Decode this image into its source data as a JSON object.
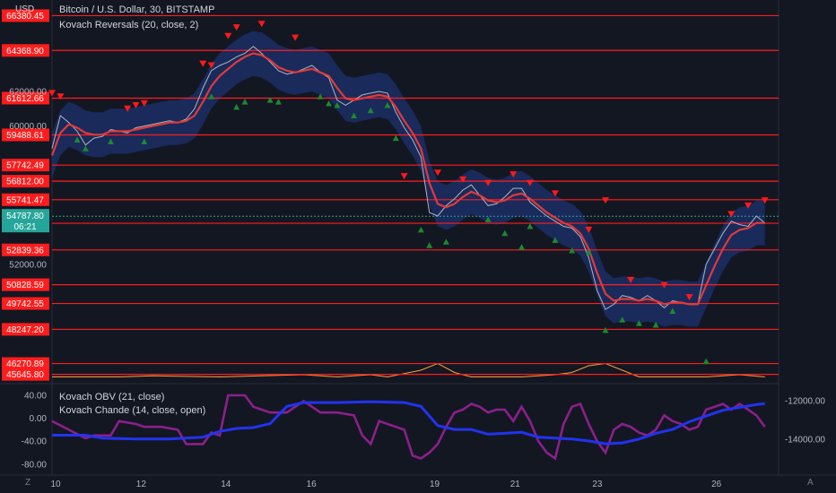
{
  "header": {
    "currency": "USD",
    "symbol_line": "Bitcoin / U.S. Dollar, 30, BITSTAMP",
    "indicator_line": "Kovach Reversals (20, close, 2)"
  },
  "lower_pane": {
    "line1": "Kovach OBV (21, close)",
    "line2": "Kovach Chande (14, close, open)"
  },
  "footer": {
    "left_icon": "Z",
    "right_icon": "A"
  },
  "colors": {
    "background": "#131722",
    "level_line": "#ff1c1c",
    "price_line": "#b2b5be",
    "ma_line": "#e03a3a",
    "band": "#1f3a8a",
    "obv_line": "#2233ee",
    "chande_line": "#8c1f8c",
    "volume_line": "#ff9f40",
    "up_marker": "#1b8a2e",
    "down_marker": "#ff1a1a",
    "current_price": "#26a69a"
  },
  "chart_data": {
    "type": "line",
    "x_tick_labels": [
      "10",
      "12",
      "14",
      "16",
      "19",
      "21",
      "23",
      "26"
    ],
    "price_axis_ticks": [
      "62000.00",
      "60000.00",
      "52000.00"
    ],
    "level_lines": [
      "66380.45",
      "64368.90",
      "61612.66",
      "59488.61",
      "57742.49",
      "56812.00",
      "55741.47",
      "54381.19",
      "52839.36",
      "50828.59",
      "49742.55",
      "48247.20",
      "46270.89",
      "45645.80"
    ],
    "current_price": {
      "value": "54787.80",
      "countdown": "06:21"
    },
    "close_series": [
      [
        0,
        58700
      ],
      [
        1,
        60600
      ],
      [
        2,
        60200
      ],
      [
        3,
        59700
      ],
      [
        4,
        58900
      ],
      [
        5,
        59300
      ],
      [
        6,
        59400
      ],
      [
        7,
        59800
      ],
      [
        8,
        59700
      ],
      [
        9,
        59600
      ],
      [
        10,
        59900
      ],
      [
        11,
        60000
      ],
      [
        12,
        60100
      ],
      [
        13,
        60200
      ],
      [
        14,
        60300
      ],
      [
        15,
        60200
      ],
      [
        16,
        60400
      ],
      [
        17,
        61000
      ],
      [
        18,
        62200
      ],
      [
        19,
        63200
      ],
      [
        20,
        63500
      ],
      [
        21,
        63700
      ],
      [
        22,
        64000
      ],
      [
        23,
        64200
      ],
      [
        24,
        64600
      ],
      [
        25,
        64200
      ],
      [
        26,
        63700
      ],
      [
        27,
        63200
      ],
      [
        28,
        63000
      ],
      [
        29,
        63100
      ],
      [
        30,
        63300
      ],
      [
        31,
        63500
      ],
      [
        32,
        63100
      ],
      [
        33,
        62800
      ],
      [
        34,
        61500
      ],
      [
        35,
        61200
      ],
      [
        36,
        61500
      ],
      [
        37,
        61800
      ],
      [
        38,
        61900
      ],
      [
        39,
        62000
      ],
      [
        40,
        61900
      ],
      [
        41,
        60800
      ],
      [
        42,
        59900
      ],
      [
        43,
        59200
      ],
      [
        44,
        58200
      ],
      [
        45,
        55000
      ],
      [
        46,
        54800
      ],
      [
        47,
        55400
      ],
      [
        48,
        55800
      ],
      [
        49,
        56300
      ],
      [
        50,
        56600
      ],
      [
        51,
        56000
      ],
      [
        52,
        55400
      ],
      [
        53,
        55500
      ],
      [
        54,
        55900
      ],
      [
        55,
        56400
      ],
      [
        56,
        56400
      ],
      [
        57,
        55600
      ],
      [
        58,
        55200
      ],
      [
        59,
        54800
      ],
      [
        60,
        54500
      ],
      [
        61,
        54200
      ],
      [
        62,
        54100
      ],
      [
        63,
        53600
      ],
      [
        64,
        52400
      ],
      [
        65,
        50500
      ],
      [
        66,
        49400
      ],
      [
        67,
        49700
      ],
      [
        68,
        50200
      ],
      [
        69,
        50100
      ],
      [
        70,
        49900
      ],
      [
        71,
        50200
      ],
      [
        72,
        49900
      ],
      [
        73,
        49500
      ],
      [
        74,
        49900
      ],
      [
        75,
        49800
      ],
      [
        76,
        49700
      ],
      [
        77,
        49700
      ],
      [
        78,
        52000
      ],
      [
        79,
        52900
      ],
      [
        80,
        53800
      ],
      [
        81,
        54500
      ],
      [
        82,
        54300
      ],
      [
        83,
        54200
      ],
      [
        84,
        54800
      ],
      [
        85,
        54400
      ]
    ],
    "ma_series": [
      [
        0,
        58300
      ],
      [
        1,
        59600
      ],
      [
        2,
        60100
      ],
      [
        3,
        59900
      ],
      [
        4,
        59600
      ],
      [
        5,
        59500
      ],
      [
        6,
        59500
      ],
      [
        7,
        59700
      ],
      [
        8,
        59700
      ],
      [
        9,
        59700
      ],
      [
        10,
        59800
      ],
      [
        11,
        59900
      ],
      [
        12,
        60000
      ],
      [
        13,
        60100
      ],
      [
        14,
        60200
      ],
      [
        15,
        60200
      ],
      [
        16,
        60300
      ],
      [
        17,
        60600
      ],
      [
        18,
        61400
      ],
      [
        19,
        62300
      ],
      [
        20,
        62900
      ],
      [
        21,
        63300
      ],
      [
        22,
        63700
      ],
      [
        23,
        64000
      ],
      [
        24,
        64200
      ],
      [
        25,
        64100
      ],
      [
        26,
        63800
      ],
      [
        27,
        63400
      ],
      [
        28,
        63200
      ],
      [
        29,
        63100
      ],
      [
        30,
        63200
      ],
      [
        31,
        63300
      ],
      [
        32,
        63100
      ],
      [
        33,
        62900
      ],
      [
        34,
        62200
      ],
      [
        35,
        61600
      ],
      [
        36,
        61500
      ],
      [
        37,
        61600
      ],
      [
        38,
        61700
      ],
      [
        39,
        61800
      ],
      [
        40,
        61700
      ],
      [
        41,
        61100
      ],
      [
        42,
        60300
      ],
      [
        43,
        59600
      ],
      [
        44,
        58700
      ],
      [
        45,
        56700
      ],
      [
        46,
        55500
      ],
      [
        47,
        55300
      ],
      [
        48,
        55500
      ],
      [
        49,
        55900
      ],
      [
        50,
        56200
      ],
      [
        51,
        56000
      ],
      [
        52,
        55700
      ],
      [
        53,
        55600
      ],
      [
        54,
        55700
      ],
      [
        55,
        56000
      ],
      [
        56,
        56100
      ],
      [
        57,
        55800
      ],
      [
        58,
        55400
      ],
      [
        59,
        55000
      ],
      [
        60,
        54700
      ],
      [
        61,
        54400
      ],
      [
        62,
        54200
      ],
      [
        63,
        53800
      ],
      [
        64,
        52900
      ],
      [
        65,
        51500
      ],
      [
        66,
        50300
      ],
      [
        67,
        49900
      ],
      [
        68,
        50000
      ],
      [
        69,
        50000
      ],
      [
        70,
        49900
      ],
      [
        71,
        50000
      ],
      [
        72,
        49900
      ],
      [
        73,
        49700
      ],
      [
        74,
        49800
      ],
      [
        75,
        49800
      ],
      [
        76,
        49700
      ],
      [
        77,
        49700
      ],
      [
        78,
        50800
      ],
      [
        79,
        51900
      ],
      [
        80,
        52900
      ],
      [
        81,
        53700
      ],
      [
        82,
        54000
      ],
      [
        83,
        54100
      ],
      [
        84,
        54400
      ],
      [
        85,
        54400
      ]
    ],
    "obv_series": [
      [
        0,
        -13800
      ],
      [
        4,
        -13800
      ],
      [
        6,
        -13950
      ],
      [
        10,
        -14000
      ],
      [
        14,
        -14000
      ],
      [
        18,
        -13900
      ],
      [
        20,
        -13600
      ],
      [
        22,
        -13450
      ],
      [
        24,
        -13400
      ],
      [
        26,
        -13200
      ],
      [
        28,
        -12300
      ],
      [
        30,
        -12100
      ],
      [
        34,
        -12100
      ],
      [
        38,
        -12050
      ],
      [
        42,
        -12100
      ],
      [
        44,
        -12300
      ],
      [
        46,
        -13300
      ],
      [
        48,
        -13500
      ],
      [
        50,
        -13500
      ],
      [
        52,
        -13750
      ],
      [
        54,
        -13700
      ],
      [
        56,
        -13650
      ],
      [
        58,
        -13900
      ],
      [
        60,
        -13950
      ],
      [
        62,
        -14000
      ],
      [
        64,
        -14100
      ],
      [
        66,
        -14250
      ],
      [
        68,
        -14200
      ],
      [
        70,
        -14000
      ],
      [
        72,
        -13700
      ],
      [
        74,
        -13500
      ],
      [
        76,
        -13100
      ],
      [
        78,
        -12800
      ],
      [
        80,
        -12500
      ],
      [
        82,
        -12350
      ],
      [
        84,
        -12200
      ],
      [
        85,
        -12150
      ]
    ],
    "chande_series": [
      [
        0,
        -5
      ],
      [
        2,
        -20
      ],
      [
        4,
        -35
      ],
      [
        5,
        -30
      ],
      [
        7,
        -30
      ],
      [
        8,
        -5
      ],
      [
        10,
        -10
      ],
      [
        11,
        -15
      ],
      [
        13,
        -15
      ],
      [
        15,
        -20
      ],
      [
        16,
        -45
      ],
      [
        18,
        -45
      ],
      [
        19,
        -25
      ],
      [
        20,
        -30
      ],
      [
        21,
        40
      ],
      [
        23,
        40
      ],
      [
        24,
        20
      ],
      [
        25,
        15
      ],
      [
        26,
        10
      ],
      [
        28,
        10
      ],
      [
        30,
        30
      ],
      [
        32,
        10
      ],
      [
        34,
        10
      ],
      [
        36,
        5
      ],
      [
        37,
        -30
      ],
      [
        38,
        -45
      ],
      [
        39,
        -5
      ],
      [
        41,
        -15
      ],
      [
        42,
        -20
      ],
      [
        43,
        -65
      ],
      [
        44,
        -70
      ],
      [
        45,
        -60
      ],
      [
        46,
        -45
      ],
      [
        47,
        -15
      ],
      [
        48,
        10
      ],
      [
        49,
        15
      ],
      [
        50,
        25
      ],
      [
        51,
        20
      ],
      [
        52,
        10
      ],
      [
        53,
        15
      ],
      [
        54,
        15
      ],
      [
        55,
        -5
      ],
      [
        56,
        20
      ],
      [
        57,
        -5
      ],
      [
        58,
        -40
      ],
      [
        59,
        -60
      ],
      [
        60,
        -70
      ],
      [
        61,
        -10
      ],
      [
        62,
        20
      ],
      [
        63,
        25
      ],
      [
        64,
        -10
      ],
      [
        65,
        -40
      ],
      [
        66,
        -60
      ],
      [
        67,
        -20
      ],
      [
        68,
        -10
      ],
      [
        69,
        -15
      ],
      [
        70,
        -25
      ],
      [
        71,
        -30
      ],
      [
        72,
        -20
      ],
      [
        73,
        5
      ],
      [
        74,
        -5
      ],
      [
        75,
        -10
      ],
      [
        76,
        -20
      ],
      [
        77,
        -15
      ],
      [
        78,
        15
      ],
      [
        79,
        20
      ],
      [
        80,
        25
      ],
      [
        81,
        15
      ],
      [
        82,
        25
      ],
      [
        83,
        15
      ],
      [
        84,
        5
      ],
      [
        85,
        -15
      ]
    ],
    "up_markers": [
      [
        3,
        59200
      ],
      [
        4,
        58700
      ],
      [
        7,
        59100
      ],
      [
        11,
        59100
      ],
      [
        19,
        61700
      ],
      [
        22,
        61100
      ],
      [
        23,
        61400
      ],
      [
        26,
        61500
      ],
      [
        27,
        61400
      ],
      [
        32,
        61700
      ],
      [
        33,
        61300
      ],
      [
        34,
        61200
      ],
      [
        36,
        60600
      ],
      [
        38,
        60900
      ],
      [
        40,
        61200
      ],
      [
        41,
        59300
      ],
      [
        44,
        54000
      ],
      [
        45,
        53100
      ],
      [
        47,
        53300
      ],
      [
        52,
        54600
      ],
      [
        54,
        53800
      ],
      [
        56,
        53000
      ],
      [
        57,
        54200
      ],
      [
        60,
        53400
      ],
      [
        62,
        52800
      ],
      [
        64,
        52700
      ],
      [
        66,
        48200
      ],
      [
        68,
        48800
      ],
      [
        70,
        48600
      ],
      [
        72,
        48500
      ],
      [
        74,
        49300
      ],
      [
        78,
        46400
      ]
    ],
    "down_markers": [
      [
        0,
        61900
      ],
      [
        1,
        61700
      ],
      [
        9,
        61000
      ],
      [
        10,
        61200
      ],
      [
        11,
        61300
      ],
      [
        18,
        63600
      ],
      [
        19,
        63500
      ],
      [
        21,
        65200
      ],
      [
        22,
        65700
      ],
      [
        25,
        65900
      ],
      [
        29,
        65100
      ],
      [
        42,
        57100
      ],
      [
        46,
        57300
      ],
      [
        49,
        56900
      ],
      [
        52,
        56700
      ],
      [
        55,
        57200
      ],
      [
        57,
        56700
      ],
      [
        60,
        56100
      ],
      [
        64,
        54000
      ],
      [
        66,
        55700
      ],
      [
        69,
        51100
      ],
      [
        73,
        50800
      ],
      [
        76,
        50100
      ],
      [
        81,
        54900
      ],
      [
        83,
        55400
      ],
      [
        85,
        55700
      ]
    ],
    "volume_line": [
      [
        0,
        3
      ],
      [
        8,
        3
      ],
      [
        12,
        3.5
      ],
      [
        20,
        3
      ],
      [
        30,
        4
      ],
      [
        34,
        3
      ],
      [
        38,
        4
      ],
      [
        40,
        3
      ],
      [
        44,
        6
      ],
      [
        46,
        9
      ],
      [
        48,
        5
      ],
      [
        50,
        3
      ],
      [
        56,
        3
      ],
      [
        60,
        4
      ],
      [
        62,
        5
      ],
      [
        64,
        8
      ],
      [
        66,
        9
      ],
      [
        68,
        6
      ],
      [
        70,
        3
      ],
      [
        78,
        3
      ],
      [
        82,
        4
      ],
      [
        85,
        3
      ]
    ]
  }
}
